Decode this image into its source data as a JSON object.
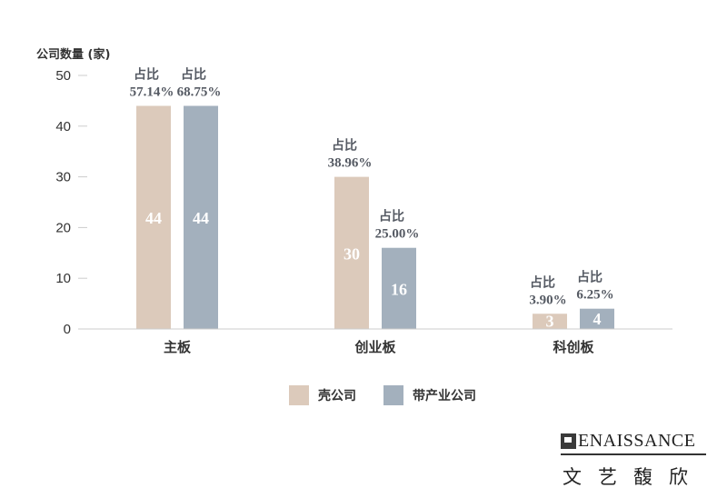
{
  "chart_data": {
    "type": "bar",
    "ylabel": "公司数量 (家)",
    "ylim": [
      0,
      50
    ],
    "yticks": [
      0,
      10,
      20,
      30,
      40,
      50
    ],
    "categories": [
      "主板",
      "创业板",
      "科创板"
    ],
    "series": [
      {
        "name": "壳公司",
        "color": "#dccabb",
        "values": [
          44,
          30,
          3
        ],
        "shares": [
          "57.14%",
          "38.96%",
          "3.90%"
        ]
      },
      {
        "name": "带产业公司",
        "color": "#a3b0bd",
        "values": [
          44,
          16,
          4
        ],
        "shares": [
          "68.75%",
          "25.00%",
          "6.25%"
        ]
      }
    ],
    "share_prefix": "占比",
    "legend_position": "bottom-center"
  },
  "brand": {
    "name_en": "ENAISSANCE",
    "name_cn": "文艺馥欣"
  }
}
